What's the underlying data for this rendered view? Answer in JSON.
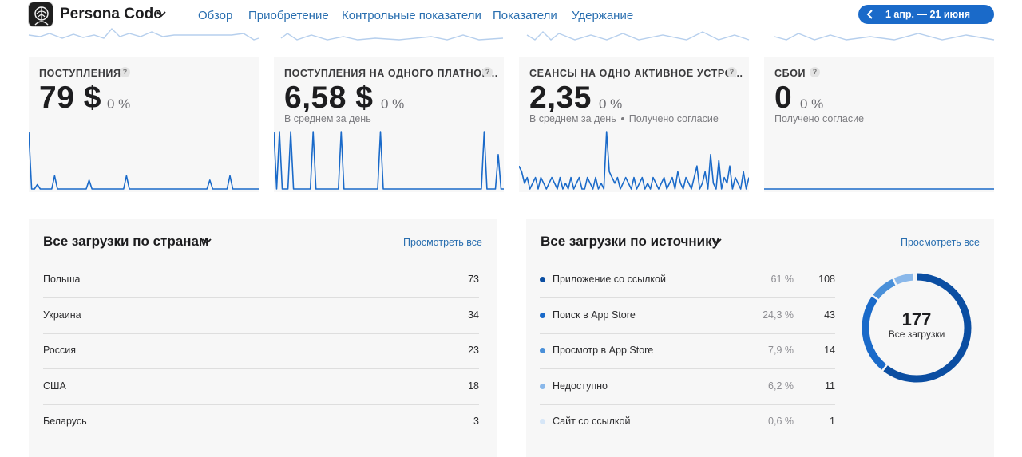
{
  "header": {
    "app_name": "Persona Code",
    "nav": [
      "Обзор",
      "Приобретение",
      "Контрольные показатели",
      "Показатели",
      "Удержание"
    ],
    "date_range": "1 апр. — 21 июня"
  },
  "metrics": [
    {
      "title": "ПОСТУПЛЕНИЯ",
      "value": "79 $",
      "delta": "0 %",
      "sub": [],
      "series": [
        13,
        0,
        0,
        1,
        0,
        0,
        0,
        0,
        0,
        3,
        0,
        0,
        0,
        0,
        0,
        0,
        0,
        0,
        0,
        0,
        0,
        2,
        0,
        0,
        0,
        0,
        0,
        0,
        0,
        0,
        0,
        0,
        0,
        0,
        3,
        0,
        0,
        0,
        0,
        0,
        0,
        0,
        0,
        0,
        0,
        0,
        0,
        0,
        0,
        0,
        0,
        0,
        0,
        0,
        0,
        0,
        0,
        0,
        0,
        0,
        0,
        0,
        0,
        2,
        0,
        0,
        0,
        0,
        0,
        0,
        3,
        0,
        0,
        0,
        0,
        0,
        0,
        0,
        0,
        0,
        0
      ]
    },
    {
      "title": "ПОСТУПЛЕНИЯ НА ОДНОГО ПЛАТНОГ…",
      "value": "6,58 $",
      "delta": "0 %",
      "sub": [
        "В среднем за день"
      ],
      "series": [
        20,
        0,
        20,
        0,
        0,
        0,
        20,
        0,
        0,
        0,
        0,
        0,
        0,
        0,
        20,
        0,
        0,
        0,
        0,
        0,
        0,
        0,
        0,
        0,
        20,
        0,
        0,
        0,
        0,
        0,
        0,
        0,
        0,
        0,
        0,
        0,
        0,
        0,
        20,
        0,
        0,
        0,
        0,
        0,
        0,
        0,
        0,
        0,
        0,
        0,
        0,
        0,
        0,
        0,
        0,
        0,
        0,
        0,
        0,
        0,
        0,
        0,
        0,
        0,
        0,
        0,
        0,
        0,
        0,
        0,
        0,
        0,
        0,
        0,
        0,
        20,
        0,
        0,
        0,
        0,
        12,
        0,
        0
      ]
    },
    {
      "title": "СЕАНСЫ НА ОДНО АКТИВНОЕ УСТРО…",
      "value": "2,35",
      "delta": "0 %",
      "sub": [
        "В среднем за день",
        "Получено согласие"
      ],
      "series": [
        4,
        3,
        1,
        2,
        0,
        1,
        2,
        0,
        2,
        1,
        0,
        1,
        2,
        1,
        0,
        2,
        0,
        1,
        0,
        2,
        0,
        1,
        2,
        0,
        0,
        2,
        1,
        0,
        2,
        0,
        1,
        0,
        10,
        3,
        2,
        1,
        2,
        0,
        1,
        2,
        1,
        0,
        2,
        0,
        1,
        2,
        0,
        1,
        0,
        2,
        1,
        0,
        1,
        2,
        0,
        1,
        2,
        0,
        3,
        1,
        0,
        2,
        1,
        0,
        2,
        4,
        0,
        1,
        3,
        0,
        6,
        1,
        0,
        5,
        0,
        2,
        1,
        4,
        0,
        2,
        1,
        0,
        3,
        0,
        2
      ]
    },
    {
      "title": "СБОИ",
      "value": "0",
      "delta": "0 %",
      "sub": [
        "Получено согласие"
      ],
      "series": [
        0,
        0,
        0,
        0,
        0,
        0,
        0,
        0,
        0,
        0,
        0,
        0,
        0,
        0,
        0,
        0,
        0,
        0,
        0,
        0
      ]
    }
  ],
  "countries": {
    "title": "Все загрузки по странам",
    "view_all": "Просмотреть все",
    "rows": [
      {
        "label": "Польша",
        "value": "73"
      },
      {
        "label": "Украина",
        "value": "34"
      },
      {
        "label": "Россия",
        "value": "23"
      },
      {
        "label": "США",
        "value": "18"
      },
      {
        "label": "Беларусь",
        "value": "3"
      }
    ]
  },
  "sources": {
    "title": "Все загрузки по источнику",
    "view_all": "Просмотреть все",
    "total": "177",
    "total_label": "Все загрузки",
    "rows": [
      {
        "label": "Приложение со ссылкой",
        "pct": "61 %",
        "value": "108",
        "share": 0.61,
        "color": "#0b4ea2"
      },
      {
        "label": "Поиск в App Store",
        "pct": "24,3 %",
        "value": "43",
        "share": 0.243,
        "color": "#1a6ac9"
      },
      {
        "label": "Просмотр в App Store",
        "pct": "7,9 %",
        "value": "14",
        "share": 0.079,
        "color": "#4a90d9"
      },
      {
        "label": "Недоступно",
        "pct": "6,2 %",
        "value": "11",
        "share": 0.062,
        "color": "#8ab8ea"
      },
      {
        "label": "Сайт со ссылкой",
        "pct": "0,6 %",
        "value": "1",
        "share": 0.006,
        "color": "#d6e6f7"
      }
    ]
  },
  "colors": {
    "accent": "#1a6ac9",
    "line": "#1a6ac9"
  }
}
